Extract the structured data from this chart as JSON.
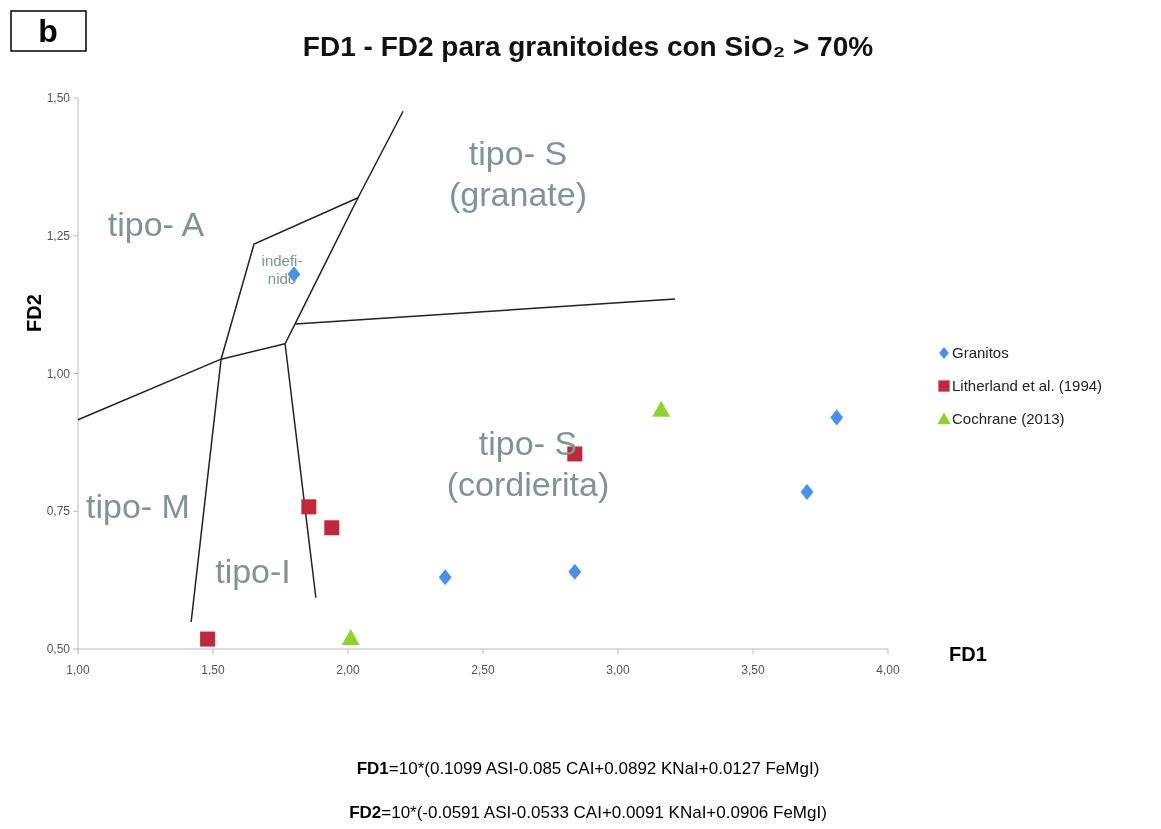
{
  "chart_data": {
    "type": "scatter",
    "title": "FD1 - FD2 para granitoides con SiO₂ > 70%",
    "xlabel": "FD1",
    "ylabel": "FD2",
    "xlim": [
      1,
      4
    ],
    "ylim": [
      0.5,
      1.5
    ],
    "xticks": [
      {
        "value": 1,
        "label": "1,00"
      },
      {
        "value": 1.5,
        "label": "1,50"
      },
      {
        "value": 2,
        "label": "2,00"
      },
      {
        "value": 2.5,
        "label": "2,50"
      },
      {
        "value": 3,
        "label": "3,00"
      },
      {
        "value": 3.5,
        "label": "3,50"
      },
      {
        "value": 4,
        "label": "4,00"
      }
    ],
    "yticks": [
      {
        "value": 0.5,
        "label": "0,50"
      },
      {
        "value": 0.75,
        "label": "0,75"
      },
      {
        "value": 1,
        "label": "1,00"
      },
      {
        "value": 1.25,
        "label": "1,25"
      },
      {
        "value": 1.5,
        "label": "1,50"
      }
    ],
    "grid": false,
    "legend": "right",
    "series": [
      {
        "type": "line",
        "color": "#222222",
        "marker": "none",
        "x": [
          1.419,
          1.53,
          1.652,
          2.037,
          2.204
        ],
        "values": [
          0.549,
          1.026,
          1.235,
          1.319,
          1.476
        ]
      },
      {
        "type": "line",
        "color": "#222222",
        "marker": "none",
        "x": [
          1.767,
          1.804,
          2.037
        ],
        "values": [
          1.054,
          1.09,
          1.319
        ]
      },
      {
        "type": "line",
        "color": "#222222",
        "marker": "none",
        "x": [
          1.804,
          3.211
        ],
        "values": [
          1.09,
          1.135
        ]
      },
      {
        "type": "line",
        "color": "#222222",
        "marker": "none",
        "x": [
          1.0,
          1.53,
          1.767,
          1.881
        ],
        "values": [
          0.916,
          1.026,
          1.054,
          0.593
        ]
      },
      {
        "name": "Granitos",
        "color": "#4a8fe8",
        "marker": "diamond",
        "x": [
          1.8,
          2.36,
          2.84,
          3.7,
          3.81
        ],
        "values": [
          1.18,
          0.63,
          0.64,
          0.785,
          0.92
        ]
      },
      {
        "name": "Litherland et al. (1994)",
        "color": "#c0283c",
        "marker": "square",
        "x": [
          1.855,
          1.94,
          2.84,
          1.48
        ],
        "values": [
          0.758,
          0.72,
          0.854,
          0.518
        ]
      },
      {
        "name": "Cochrane (2013)",
        "color": "#8ed42e",
        "marker": "triangle",
        "x": [
          3.16,
          2.01
        ],
        "values": [
          0.934,
          0.52
        ]
      }
    ],
    "annotations": [
      "tipo- A",
      "tipo- S\n(granate)",
      "tipo- S\n(cordierita)",
      "tipo- M",
      "tipo-I",
      "indefi-\nnido",
      "b",
      "FD1=10*(0.1099 ASI-0.085 CAI+0.0892 KNaI+0.0127 FeMgI)",
      "FD2=10*(-0.0591 ASI-0.0533 CAI+0.0091 KNaI+0.0906 FeMgI)"
    ]
  }
}
